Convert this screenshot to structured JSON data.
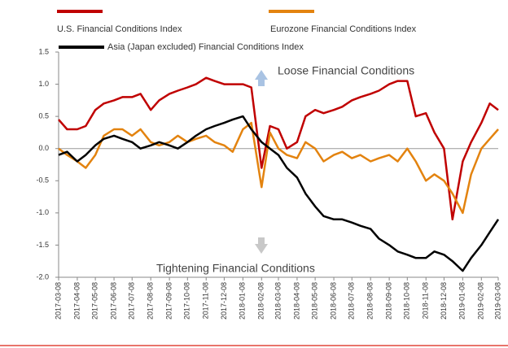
{
  "chart_data": {
    "type": "line",
    "x": [
      "2017-03-08",
      "2017-03-22",
      "2017-04-08",
      "2017-04-22",
      "2017-05-08",
      "2017-05-22",
      "2017-06-08",
      "2017-06-22",
      "2017-07-08",
      "2017-07-22",
      "2017-08-08",
      "2017-08-22",
      "2017-09-08",
      "2017-09-22",
      "2017-10-08",
      "2017-10-22",
      "2017-11-08",
      "2017-11-22",
      "2017-12-08",
      "2017-12-22",
      "2018-01-08",
      "2018-01-22",
      "2018-02-08",
      "2018-02-22",
      "2018-03-08",
      "2018-03-22",
      "2018-04-08",
      "2018-04-22",
      "2018-05-08",
      "2018-05-22",
      "2018-06-08",
      "2018-06-22",
      "2018-07-08",
      "2018-07-22",
      "2018-08-08",
      "2018-08-22",
      "2018-09-08",
      "2018-09-22",
      "2018-10-08",
      "2018-10-22",
      "2018-11-08",
      "2018-11-22",
      "2018-12-08",
      "2018-12-22",
      "2019-01-08",
      "2019-01-22",
      "2019-02-08",
      "2019-02-22",
      "2019-03-08"
    ],
    "series": [
      {
        "name": "U.S. Financial Conditions Index",
        "color": "#c00000",
        "values": [
          0.45,
          0.3,
          0.3,
          0.35,
          0.6,
          0.7,
          0.75,
          0.8,
          0.8,
          0.85,
          0.6,
          0.75,
          0.85,
          0.9,
          0.95,
          1.0,
          1.1,
          1.05,
          1.0,
          1.0,
          1.0,
          0.95,
          -0.3,
          0.35,
          0.3,
          0.0,
          0.1,
          0.5,
          0.6,
          0.55,
          0.6,
          0.65,
          0.75,
          0.8,
          0.85,
          0.9,
          1.0,
          1.05,
          1.05,
          0.5,
          0.55,
          0.25,
          0.0,
          -1.1,
          -0.2,
          0.1,
          0.4,
          0.7,
          0.6
        ]
      },
      {
        "name": "Eurozone Financial Conditions Index",
        "color": "#e3830f",
        "values": [
          0.0,
          -0.1,
          -0.2,
          -0.3,
          -0.1,
          0.2,
          0.3,
          0.3,
          0.2,
          0.3,
          0.1,
          0.05,
          0.1,
          0.2,
          0.1,
          0.15,
          0.2,
          0.1,
          0.05,
          -0.05,
          0.3,
          0.4,
          -0.6,
          0.25,
          0.0,
          -0.1,
          -0.15,
          0.1,
          0.0,
          -0.2,
          -0.1,
          -0.05,
          -0.15,
          -0.1,
          -0.2,
          -0.15,
          -0.1,
          -0.2,
          0.0,
          -0.2,
          -0.5,
          -0.4,
          -0.5,
          -0.7,
          -1.0,
          -0.4,
          0.0,
          0.15,
          0.3
        ]
      },
      {
        "name": "Asia (Japan excluded) Financial Conditions Index",
        "color": "#000000",
        "values": [
          -0.1,
          -0.05,
          -0.2,
          -0.1,
          0.05,
          0.15,
          0.2,
          0.15,
          0.1,
          0.0,
          0.05,
          0.1,
          0.05,
          0.0,
          0.1,
          0.2,
          0.3,
          0.35,
          0.4,
          0.45,
          0.5,
          0.3,
          0.1,
          0.0,
          -0.1,
          -0.3,
          -0.45,
          -0.7,
          -0.9,
          -1.05,
          -1.1,
          -1.1,
          -1.15,
          -1.2,
          -1.25,
          -1.4,
          -1.5,
          -1.6,
          -1.65,
          -1.7,
          -1.7,
          -1.6,
          -1.65,
          -1.75,
          -1.9,
          -1.7,
          -1.5,
          -1.3,
          -1.1
        ]
      }
    ],
    "xlim": [
      "2017-03-08",
      "2019-03-08"
    ],
    "xticks": [
      "2017-03-08",
      "2017-04-08",
      "2017-05-08",
      "2017-06-08",
      "2017-07-08",
      "2017-08-08",
      "2017-09-08",
      "2017-10-08",
      "2017-11-08",
      "2017-12-08",
      "2018-01-08",
      "2018-02-08",
      "2018-03-08",
      "2018-04-08",
      "2018-05-08",
      "2018-06-08",
      "2018-07-08",
      "2018-08-08",
      "2018-09-08",
      "2018-10-08",
      "2018-11-08",
      "2018-12-08",
      "2019-01-08",
      "2019-02-08",
      "2019-03-08"
    ],
    "ylim": [
      -2,
      1.5
    ],
    "yticks": [
      1.5,
      {
        "value": 1,
        "label": "1.0"
      },
      0.5,
      {
        "value": 0,
        "label": "0.0"
      },
      -0.5,
      {
        "value": -1,
        "label": "-1.0"
      },
      -1.5,
      {
        "value": -2,
        "label": "-2.0"
      }
    ],
    "annotations": [
      "Loose Financial Conditions",
      "Tightening Financial Conditions"
    ]
  }
}
